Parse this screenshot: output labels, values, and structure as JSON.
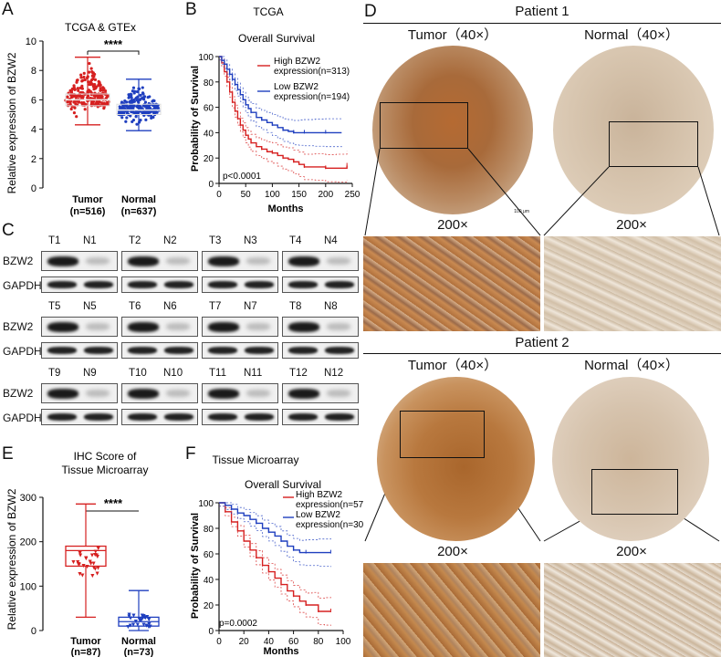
{
  "panels": {
    "A": "A",
    "B": "B",
    "C": "C",
    "D": "D",
    "E": "E",
    "F": "F"
  },
  "panel_a": {
    "title": "TCGA & GTEx",
    "ylabel": "Relative expression of BZW2",
    "significance": "****",
    "yticks": [
      "0",
      "2",
      "4",
      "6",
      "8",
      "10"
    ]
  },
  "panel_b": {
    "title1": "TCGA",
    "title2": "Overall Survival",
    "ylabel": "Probability of Survival",
    "xlabel": "Months",
    "pvalue": "p<0.0001",
    "legend_high": [
      "High BZW2",
      "expression(n=313)"
    ],
    "legend_low": [
      "Low BZW2",
      "expression(n=194)"
    ],
    "xticks": [
      "0",
      "50",
      "100",
      "150",
      "200",
      "250"
    ],
    "yticks": [
      "0",
      "20",
      "40",
      "60",
      "80",
      "100"
    ]
  },
  "panel_c": {
    "rows": [
      {
        "lanes": [
          "T1",
          "N1",
          "T2",
          "N2",
          "T3",
          "N3",
          "T4",
          "N4"
        ]
      },
      {
        "lanes": [
          "T5",
          "N5",
          "T6",
          "N6",
          "T7",
          "N7",
          "T8",
          "N8"
        ]
      },
      {
        "lanes": [
          "T9",
          "N9",
          "T10",
          "N10",
          "T11",
          "N11",
          "T12",
          "N12"
        ]
      }
    ],
    "label_target": "BZW2",
    "label_control": "GAPDH"
  },
  "panel_d": {
    "patient1": "Patient 1",
    "patient2": "Patient 2",
    "tumor_label": "Tumor（40×）",
    "normal_label": "Normal（40×）",
    "zoom_label": "200×",
    "scale_label": "100 μm"
  },
  "panel_e": {
    "title1": "IHC Score of",
    "title2": "Tissue Microarray",
    "ylabel": "Relative expression of BZW2",
    "significance": "****",
    "yticks": [
      "0",
      "100",
      "200",
      "300"
    ]
  },
  "panel_f": {
    "title1": "Tissue Microarray",
    "title2": "Overall Survival",
    "ylabel": "Probability of Survival",
    "xlabel": "Months",
    "pvalue": "p=0.0002",
    "legend_high": [
      "High BZW2",
      "expression(n=57)"
    ],
    "legend_low": [
      "Low BZW2",
      "expression(n=30)"
    ],
    "xticks": [
      "0",
      "20",
      "40",
      "60",
      "80",
      "100"
    ],
    "yticks": [
      "0",
      "20",
      "40",
      "60",
      "80",
      "100"
    ]
  },
  "chart_data": [
    {
      "type": "scatter",
      "title": "TCGA & GTEx",
      "ylabel": "Relative expression of BZW2",
      "categories": [
        "Tumor\n(n=516)",
        "Normal\n(n=637)"
      ],
      "ylim": [
        0,
        10
      ],
      "series": [
        {
          "name": "Tumor",
          "color": "#d62020",
          "n": 516,
          "median": 6.0,
          "q1": 5.6,
          "q3": 6.4,
          "min": 4.3,
          "max": 8.9
        },
        {
          "name": "Normal",
          "color": "#1f3fbf",
          "n": 637,
          "median": 5.3,
          "q1": 5.0,
          "q3": 5.7,
          "min": 3.9,
          "max": 7.4
        }
      ]
    },
    {
      "type": "line",
      "title": "Overall Survival",
      "xlabel": "Months",
      "ylabel": "Probability of Survival",
      "xlim": [
        0,
        250
      ],
      "ylim": [
        0,
        100
      ],
      "series": [
        {
          "name": "High BZW2 expression(n=313)",
          "color": "#d62020",
          "x": [
            0,
            5,
            10,
            15,
            20,
            25,
            30,
            35,
            40,
            45,
            50,
            55,
            60,
            70,
            80,
            90,
            100,
            110,
            120,
            130,
            140,
            150,
            160,
            180,
            200,
            220,
            240
          ],
          "y": [
            100,
            95,
            88,
            80,
            72,
            64,
            57,
            51,
            46,
            42,
            38,
            35,
            32,
            29,
            27,
            25,
            24,
            22,
            20,
            19,
            17,
            15,
            13,
            13,
            12,
            12,
            14
          ]
        },
        {
          "name": "Low BZW2 expression(n=194)",
          "color": "#1f3fbf",
          "x": [
            0,
            5,
            10,
            15,
            20,
            25,
            30,
            35,
            40,
            45,
            50,
            55,
            60,
            70,
            80,
            90,
            100,
            110,
            120,
            130,
            140,
            150,
            160,
            180,
            200,
            230
          ],
          "y": [
            100,
            97,
            94,
            90,
            86,
            82,
            78,
            74,
            70,
            66,
            62,
            59,
            56,
            52,
            50,
            48,
            46,
            44,
            42,
            41,
            40,
            40,
            40,
            40,
            40,
            40
          ]
        }
      ]
    },
    {
      "type": "scatter",
      "title": "IHC Score of Tissue Microarray",
      "ylabel": "Relative expression of BZW2",
      "categories": [
        "Tumor\n(n=87)",
        "Normal\n(n=73)"
      ],
      "ylim": [
        0,
        300
      ],
      "series": [
        {
          "name": "Tumor",
          "color": "#d62020",
          "n": 87,
          "median": 180,
          "q1": 145,
          "q3": 190,
          "min": 30,
          "max": 285
        },
        {
          "name": "Normal",
          "color": "#1f3fbf",
          "n": 73,
          "median": 20,
          "q1": 10,
          "q3": 30,
          "min": 0,
          "max": 90
        }
      ]
    },
    {
      "type": "line",
      "title": "Overall Survival",
      "xlabel": "Months",
      "ylabel": "Probability of Survival",
      "xlim": [
        0,
        100
      ],
      "ylim": [
        0,
        100
      ],
      "series": [
        {
          "name": "High BZW2 expression(n=57)",
          "color": "#d62020",
          "x": [
            0,
            5,
            10,
            15,
            20,
            25,
            30,
            35,
            40,
            45,
            50,
            55,
            60,
            65,
            70,
            75,
            80,
            85,
            90
          ],
          "y": [
            100,
            93,
            85,
            78,
            70,
            63,
            57,
            51,
            46,
            41,
            36,
            31,
            27,
            23,
            20,
            20,
            15,
            15,
            15
          ]
        },
        {
          "name": "Low BZW2 expression(n=30)",
          "color": "#1f3fbf",
          "x": [
            0,
            5,
            10,
            15,
            20,
            25,
            30,
            35,
            40,
            45,
            50,
            55,
            60,
            65,
            70,
            80,
            90
          ],
          "y": [
            100,
            98,
            95,
            92,
            90,
            87,
            84,
            80,
            77,
            74,
            70,
            66,
            63,
            61,
            61,
            61,
            61
          ]
        }
      ]
    }
  ]
}
